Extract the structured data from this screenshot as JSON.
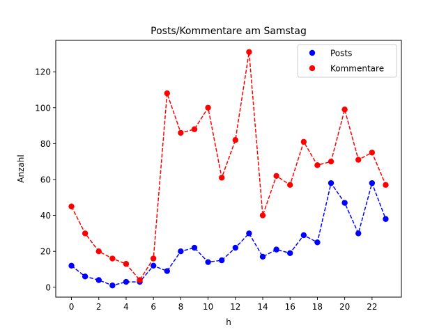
{
  "chart_data": {
    "type": "line",
    "title": "Posts/Kommentare am Samstag",
    "xlabel": "h",
    "ylabel": "Anzahl",
    "xlim": [
      -1.15,
      24.15
    ],
    "ylim": [
      -5.5,
      137.5
    ],
    "xticks": [
      0,
      2,
      4,
      6,
      8,
      10,
      12,
      14,
      16,
      18,
      20,
      22
    ],
    "yticks": [
      0,
      20,
      40,
      60,
      80,
      100,
      120
    ],
    "grid": false,
    "legend_position": "top-right",
    "x": [
      0,
      1,
      2,
      3,
      4,
      5,
      6,
      7,
      8,
      9,
      10,
      11,
      12,
      13,
      14,
      15,
      16,
      17,
      18,
      19,
      20,
      21,
      22,
      23
    ],
    "series": [
      {
        "name": "Posts",
        "color": "#0000ff",
        "values": [
          12,
          6,
          4,
          1,
          3,
          3,
          12,
          9,
          20,
          22,
          14,
          15,
          22,
          30,
          17,
          21,
          19,
          29,
          25,
          58,
          47,
          30,
          58,
          38
        ]
      },
      {
        "name": "Kommentare",
        "color": "#ff0000",
        "values": [
          45,
          30,
          20,
          16,
          13,
          4,
          16,
          108,
          86,
          88,
          100,
          61,
          82,
          131,
          40,
          62,
          57,
          81,
          68,
          70,
          99,
          71,
          75,
          57
        ]
      }
    ]
  }
}
